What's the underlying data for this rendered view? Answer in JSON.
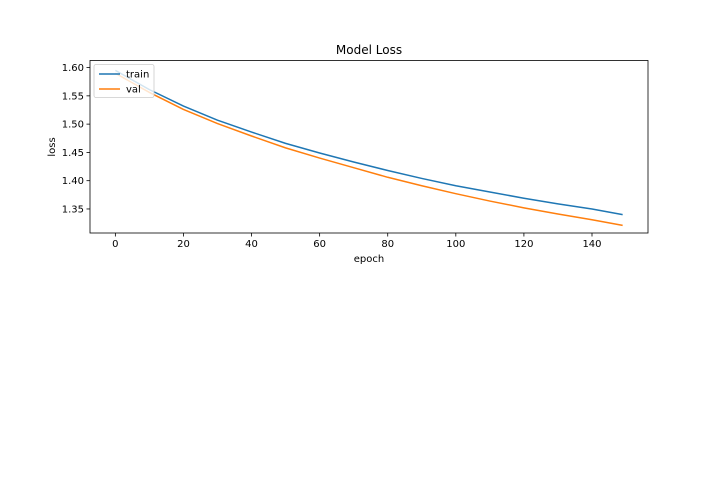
{
  "chart_data": {
    "type": "line",
    "title": "Model Loss",
    "xlabel": "epoch",
    "ylabel": "loss",
    "xlim": [
      -7.45,
      156.45
    ],
    "ylim": [
      1.3075,
      1.6125
    ],
    "xticks": [
      0,
      20,
      40,
      60,
      80,
      100,
      120,
      140
    ],
    "xtick_labels": [
      "0",
      "20",
      "40",
      "60",
      "80",
      "100",
      "120",
      "140"
    ],
    "yticks": [
      1.35,
      1.4,
      1.45,
      1.5,
      1.55,
      1.6
    ],
    "ytick_labels": [
      "1.35",
      "1.40",
      "1.45",
      "1.50",
      "1.55",
      "1.60"
    ],
    "grid": false,
    "legend_position": "upper-left",
    "series": [
      {
        "name": "train",
        "color": "#1f77b4",
        "x": [
          0,
          10,
          20,
          30,
          40,
          50,
          60,
          70,
          80,
          90,
          100,
          110,
          120,
          130,
          140,
          149
        ],
        "values": [
          1.595,
          1.561,
          1.532,
          1.507,
          1.486,
          1.466,
          1.449,
          1.433,
          1.418,
          1.404,
          1.391,
          1.38,
          1.369,
          1.359,
          1.35,
          1.34
        ]
      },
      {
        "name": "val",
        "color": "#ff7f0e",
        "x": [
          0,
          10,
          20,
          30,
          40,
          50,
          60,
          70,
          80,
          90,
          100,
          110,
          120,
          130,
          140,
          149
        ],
        "values": [
          1.59,
          1.556,
          1.526,
          1.501,
          1.479,
          1.458,
          1.44,
          1.423,
          1.406,
          1.391,
          1.377,
          1.364,
          1.352,
          1.341,
          1.331,
          1.321
        ]
      }
    ]
  }
}
